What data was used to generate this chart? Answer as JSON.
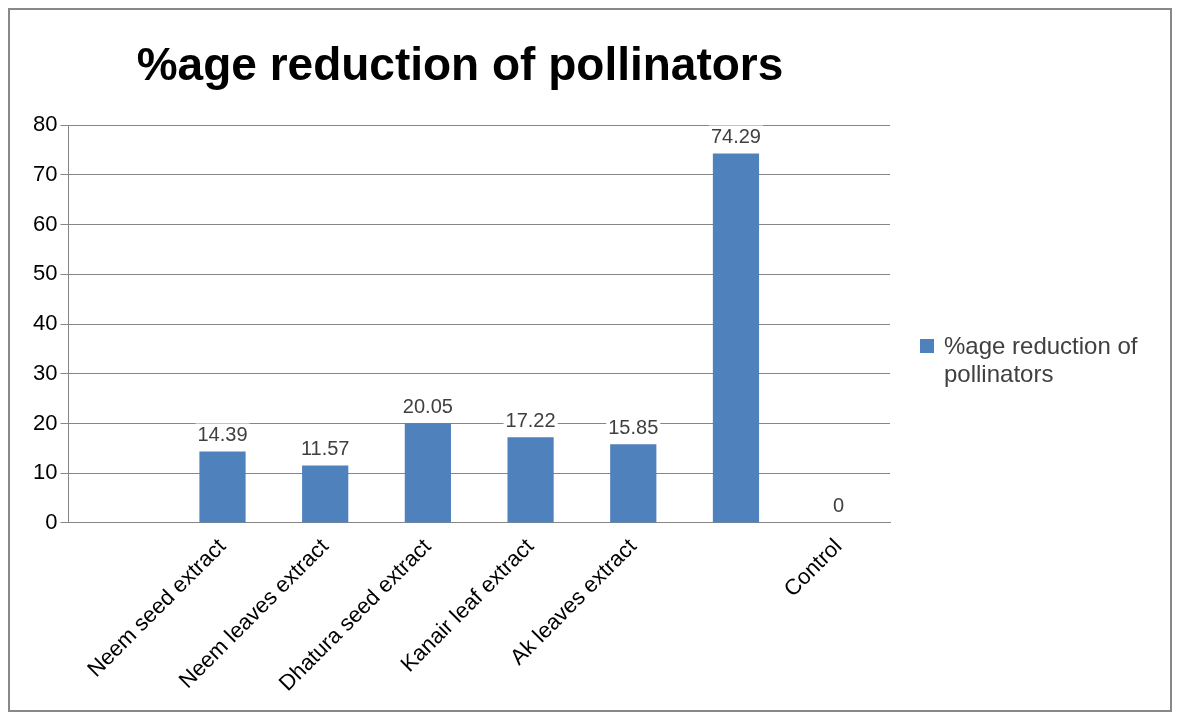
{
  "chart_data": {
    "type": "bar",
    "title": "%age reduction of pollinators",
    "categories": [
      null,
      "Neem seed extract",
      "Neem leaves extract",
      "Dhatura seed extract",
      "Kanair leaf extract",
      "Ak leaves extract",
      null,
      "Control"
    ],
    "series": [
      {
        "name": "%age reduction of pollinators",
        "color": "#4f81bd",
        "values": [
          null,
          14.39,
          11.57,
          20.05,
          17.22,
          15.85,
          74.29,
          0
        ]
      }
    ],
    "ylim": [
      0,
      80
    ],
    "yticks": [
      0,
      10,
      20,
      30,
      40,
      50,
      60,
      70,
      80
    ],
    "grid": "y",
    "legend": "right",
    "data_labels": true
  }
}
